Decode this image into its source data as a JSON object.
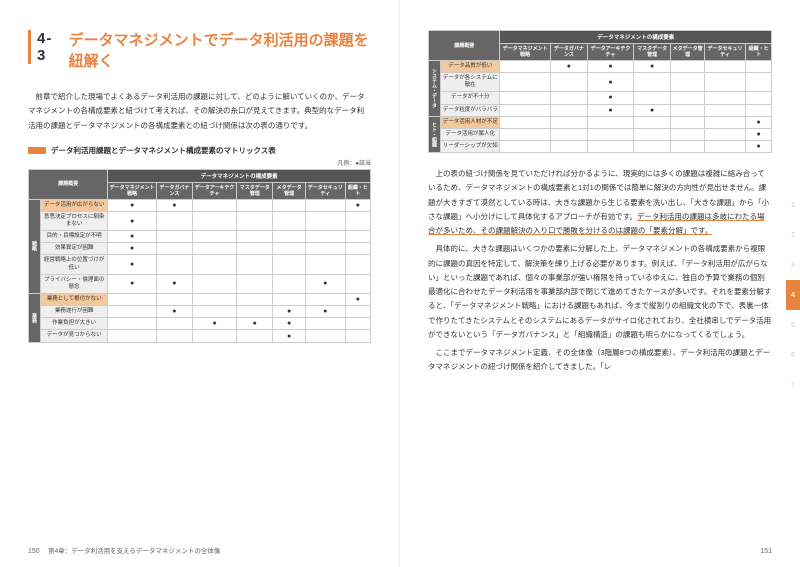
{
  "section": {
    "number": "4-3",
    "title": "データマネジメントでデータ利活用の課題を紐解く"
  },
  "left": {
    "intro": "前章で紹介した現場でよくあるデータ利活用の課題に対して、どのように解いていくのか、データマネジメントの各構成要素と紐づけて考えれば、その解決の糸口が見えてきます。典型的なデータ利活用の課題とデータマネジメントの各構成要素との紐づけ関係は次の表の通りです。",
    "caption": "データ利活用課題とデータマネジメント構成要素のマトリックス表",
    "legend": "凡例：●該当"
  },
  "table": {
    "superheader": "データマネジメントの構成要素",
    "row_header_label": "課題概要",
    "cols": [
      "データマネジメント戦略",
      "データガバナンス",
      "データアーキテクチャ",
      "マスタデータ管理",
      "メタデータ管理",
      "データセキュリティ",
      "組織・ヒト"
    ],
    "groups_left": [
      {
        "name": "戦略",
        "orange_first": true,
        "rows": [
          {
            "label": "データ活用が広がらない",
            "dots": [
              1,
              1,
              0,
              0,
              0,
              0,
              1
            ]
          },
          {
            "label": "意思決定プロセスに馴染まない",
            "dots": [
              1,
              0,
              0,
              0,
              0,
              0,
              0
            ]
          },
          {
            "label": "目的・目標設定が不明",
            "dots": [
              1,
              0,
              0,
              0,
              0,
              0,
              0
            ]
          },
          {
            "label": "効果算定が困難",
            "dots": [
              1,
              0,
              0,
              0,
              0,
              0,
              0
            ]
          },
          {
            "label": "経営戦略上の位置づけが低い",
            "dots": [
              1,
              0,
              0,
              0,
              0,
              0,
              0
            ]
          },
          {
            "label": "プライバシー・倫理面の懸念",
            "dots": [
              1,
              1,
              0,
              0,
              0,
              1,
              0
            ]
          }
        ]
      },
      {
        "name": "業務",
        "orange_first": true,
        "rows": [
          {
            "label": "業務として根付かない",
            "dots": [
              0,
              0,
              0,
              0,
              0,
              0,
              1
            ]
          },
          {
            "label": "業務遂行が困難",
            "dots": [
              0,
              1,
              0,
              0,
              1,
              1,
              0
            ]
          },
          {
            "label": "作業負担が大きい",
            "dots": [
              0,
              0,
              1,
              1,
              1,
              0,
              0
            ]
          },
          {
            "label": "データが見つからない",
            "dots": [
              0,
              0,
              0,
              0,
              1,
              0,
              0
            ]
          }
        ]
      }
    ],
    "groups_right": [
      {
        "name": "システム・データ",
        "orange_first": true,
        "rows": [
          {
            "label": "データ品質が低い",
            "dots": [
              0,
              1,
              1,
              1,
              0,
              0,
              0
            ]
          },
          {
            "label": "データが各システムに散在",
            "dots": [
              0,
              0,
              1,
              0,
              0,
              0,
              0
            ]
          },
          {
            "label": "データが不十分",
            "dots": [
              0,
              0,
              1,
              0,
              0,
              0,
              0
            ]
          },
          {
            "label": "データ粒度がバラバラ",
            "dots": [
              0,
              0,
              1,
              1,
              0,
              0,
              0
            ]
          }
        ]
      },
      {
        "name": "ヒト・組織",
        "orange_first": true,
        "rows": [
          {
            "label": "データ活用人材が不足",
            "dots": [
              0,
              0,
              0,
              0,
              0,
              0,
              1
            ]
          },
          {
            "label": "データ活用が属人化",
            "dots": [
              0,
              0,
              0,
              0,
              0,
              0,
              1
            ]
          },
          {
            "label": "リーダーシップが欠如",
            "dots": [
              0,
              0,
              0,
              0,
              0,
              0,
              1
            ]
          }
        ]
      }
    ]
  },
  "right": {
    "p1a": "上の表の紐づけ関係を見ていただければ分かるように、現実的には多くの課題は複雑に絡み合っているため、データマネジメントの構成要素と1対1の関係では簡単に解決の方向性が見出せません。課題が大きすぎて漠然としている時は、大きな課題から生じる要素を洗い出し、「大きな課題」から「小さな課題」へ小分けにして具体化するアプローチが有効です。",
    "p1h": "データ利活用の課題は多岐にわたる場合が多いため、その課題解決の入り口で勝敗を分けるのは課題の「要素分解」です。",
    "p2": "具体的に、大きな課題はいくつかの要素に分解した上、データマネジメントの各構成要素から複眼的に課題の真因を特定して、解決策を練り上げる必要があります。例えば、「データ利活用が広がらない」といった課題であれば、個々の事業部が強い権限を持っているゆえに、独自の予算で業務の個別最適化に合わせたデータ利活用を事業部内部で閉じて進めてきたケースが多いです。それを要素分解すると、「データマネジメント戦略」における課題もあれば、今まで縦割りの組織文化の下で、表裏一体で作りたてきたシステムとそのシステムにあるデータがサイロ化されており、全社横串しでデータ活用ができないという「データガバナンス」と「組織構造」の課題も明らかになってくるでしょう。",
    "p3": "ここまでデータマネジメント定義、その全体像（3階層8つの構成要素）、データ利活用の課題とデータマネジメントの紐づけ関係を紹介してきました。「レ"
  },
  "footer": {
    "page_left": "150",
    "page_right": "151",
    "chapter": "第4章：データ利活用を支えるデータマネジメントの全体像"
  },
  "tabs": {
    "items": [
      "1",
      "2",
      "3",
      "4",
      "5",
      "6",
      "7"
    ],
    "active": 3
  }
}
